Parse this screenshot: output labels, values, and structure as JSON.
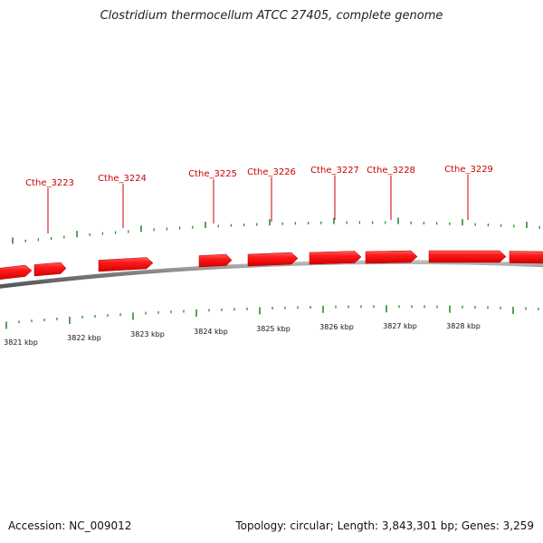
{
  "title": "Clostridium thermocellum ATCC 27405, complete genome",
  "footer": {
    "accession": "Accession: NC_009012",
    "summary": "Topology: circular; Length: 3,843,301 bp; Genes: 3,259"
  },
  "colors": {
    "gene": "#ff0000",
    "gene_dark": "#c80000",
    "label": "#cc0000",
    "tick": "#2e8b2e",
    "backbone": "#808080"
  },
  "gene_labels": [
    "Cthe_3223",
    "Cthe_3224",
    "Cthe_3225",
    "Cthe_3226",
    "Cthe_3227",
    "Cthe_3228",
    "Cthe_3229"
  ],
  "kbp_labels": [
    "3821 kbp",
    "3822 kbp",
    "3823 kbp",
    "3824 kbp",
    "3825 kbp",
    "3826 kbp",
    "3827 kbp",
    "3828 kbp"
  ]
}
